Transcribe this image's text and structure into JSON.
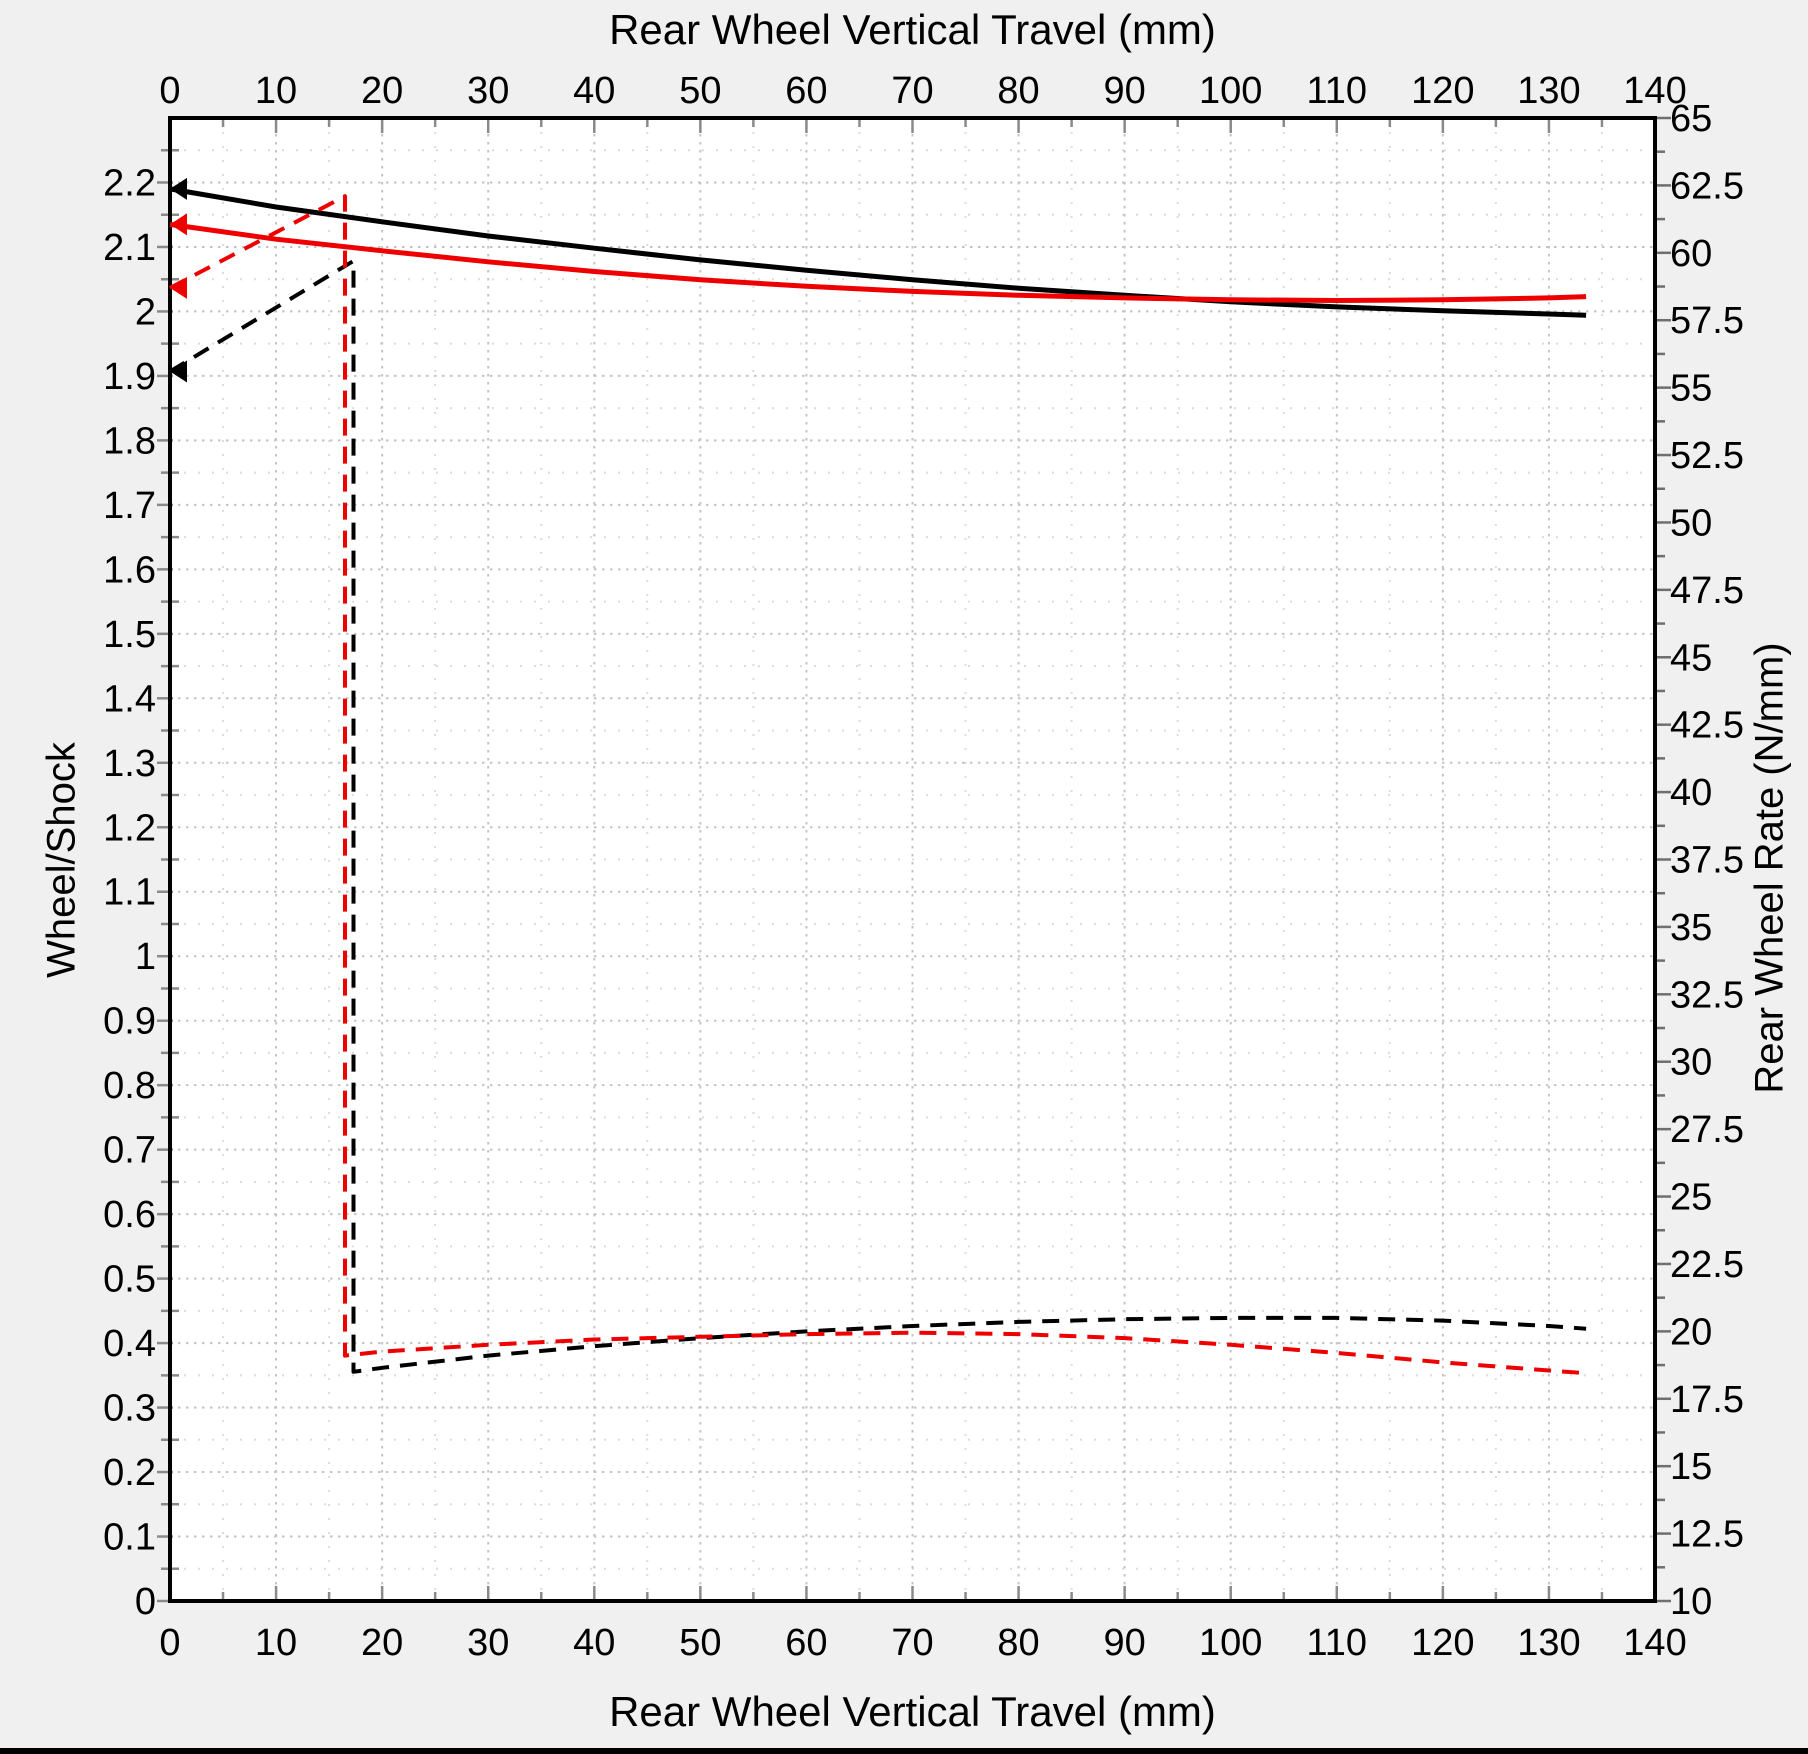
{
  "window": {
    "background": "#f0f0f0",
    "bottom_bar_color": "#000000"
  },
  "chart_data": {
    "type": "line",
    "title_top": "Rear Wheel Vertical Travel (mm)",
    "xlabel_bottom": "Rear Wheel Vertical Travel (mm)",
    "ylabel_left": "Wheel/Shock",
    "ylabel_right": "Rear Wheel Rate (N/mm)",
    "plot_background": "#ffffff",
    "axis_border_color": "#000000",
    "tick_color": "#8a8a8a",
    "x_axis": {
      "min": 0,
      "max": 140,
      "major_step": 10,
      "minor_step": 5,
      "tick_values": [
        0,
        10,
        20,
        30,
        40,
        50,
        60,
        70,
        80,
        90,
        100,
        110,
        120,
        130,
        140
      ],
      "tick_labels": [
        "0",
        "10",
        "20",
        "30",
        "40",
        "50",
        "60",
        "70",
        "80",
        "90",
        "100",
        "110",
        "120",
        "130",
        "140"
      ]
    },
    "left_axis": {
      "min": 0,
      "max": 2.3,
      "major_step": 0.1,
      "minor_step": 0.05,
      "tick_values": [
        0,
        0.1,
        0.2,
        0.3,
        0.4,
        0.5,
        0.6,
        0.7,
        0.8,
        0.9,
        1,
        1.1,
        1.2,
        1.3,
        1.4,
        1.5,
        1.6,
        1.7,
        1.8,
        1.9,
        2,
        2.1,
        2.2
      ],
      "tick_labels": [
        "0",
        "0.1",
        "0.2",
        "0.3",
        "0.4",
        "0.5",
        "0.6",
        "0.7",
        "0.8",
        "0.9",
        "1",
        "1.1",
        "1.2",
        "1.3",
        "1.4",
        "1.5",
        "1.6",
        "1.7",
        "1.8",
        "1.9",
        "2",
        "2.1",
        "2.2"
      ]
    },
    "right_axis": {
      "min": 10,
      "max": 65,
      "major_step": 2.5,
      "minor_step": 1.25,
      "tick_values": [
        10,
        12.5,
        15,
        17.5,
        20,
        22.5,
        25,
        27.5,
        30,
        32.5,
        35,
        37.5,
        40,
        42.5,
        45,
        47.5,
        50,
        52.5,
        55,
        57.5,
        60,
        62.5,
        65
      ],
      "tick_labels": [
        "10",
        "12.5",
        "15",
        "17.5",
        "20",
        "22.5",
        "25",
        "27.5",
        "30",
        "32.5",
        "35",
        "37.5",
        "40",
        "42.5",
        "45",
        "47.5",
        "50",
        "52.5",
        "55",
        "57.5",
        "60",
        "62.5",
        "65"
      ]
    },
    "grid": {
      "style": "dotted",
      "major_color": "#c4c4c4",
      "minor_color": "#dcdcdc"
    },
    "legend": "none",
    "series": [
      {
        "name": "leverage-ratio-black-solid",
        "axis": "left",
        "color": "#000000",
        "style": "solid",
        "marker_start": "left-triangle",
        "points": [
          [
            0,
            2.19
          ],
          [
            10,
            2.162
          ],
          [
            20,
            2.139
          ],
          [
            30,
            2.117
          ],
          [
            40,
            2.098
          ],
          [
            50,
            2.08
          ],
          [
            60,
            2.064
          ],
          [
            70,
            2.049
          ],
          [
            80,
            2.036
          ],
          [
            90,
            2.025
          ],
          [
            100,
            2.015
          ],
          [
            110,
            2.007
          ],
          [
            120,
            2.001
          ],
          [
            130,
            1.996
          ],
          [
            133.5,
            1.994
          ]
        ]
      },
      {
        "name": "leverage-ratio-red-solid",
        "axis": "left",
        "color": "#ee0000",
        "style": "solid",
        "marker_start": "left-triangle",
        "points": [
          [
            0,
            2.135
          ],
          [
            10,
            2.112
          ],
          [
            20,
            2.094
          ],
          [
            30,
            2.077
          ],
          [
            40,
            2.062
          ],
          [
            50,
            2.049
          ],
          [
            60,
            2.039
          ],
          [
            70,
            2.031
          ],
          [
            80,
            2.025
          ],
          [
            90,
            2.021
          ],
          [
            100,
            2.018
          ],
          [
            110,
            2.017
          ],
          [
            120,
            2.018
          ],
          [
            130,
            2.021
          ],
          [
            133.5,
            2.023
          ]
        ]
      },
      {
        "name": "wheel-rate-black-dashed",
        "axis": "right",
        "color": "#000000",
        "style": "dashed",
        "marker_start": "left-triangle",
        "points": [
          [
            0,
            55.6
          ],
          [
            17.3,
            59.7
          ],
          [
            17.3,
            18.5
          ],
          [
            20,
            18.65
          ],
          [
            30,
            19.1
          ],
          [
            40,
            19.45
          ],
          [
            50,
            19.75
          ],
          [
            60,
            20.0
          ],
          [
            70,
            20.2
          ],
          [
            80,
            20.35
          ],
          [
            90,
            20.45
          ],
          [
            100,
            20.5
          ],
          [
            110,
            20.5
          ],
          [
            120,
            20.4
          ],
          [
            130,
            20.2
          ],
          [
            133.5,
            20.1
          ]
        ]
      },
      {
        "name": "wheel-rate-red-dashed",
        "axis": "right",
        "color": "#ee0000",
        "style": "dashed",
        "marker_start": "left-triangle",
        "points": [
          [
            0,
            58.7
          ],
          [
            16.5,
            62.1
          ],
          [
            16.5,
            19.1
          ],
          [
            20,
            19.25
          ],
          [
            30,
            19.5
          ],
          [
            40,
            19.7
          ],
          [
            50,
            19.8
          ],
          [
            60,
            19.9
          ],
          [
            70,
            19.95
          ],
          [
            80,
            19.9
          ],
          [
            90,
            19.75
          ],
          [
            100,
            19.5
          ],
          [
            110,
            19.2
          ],
          [
            120,
            18.85
          ],
          [
            130,
            18.55
          ],
          [
            133.5,
            18.45
          ]
        ]
      }
    ]
  }
}
